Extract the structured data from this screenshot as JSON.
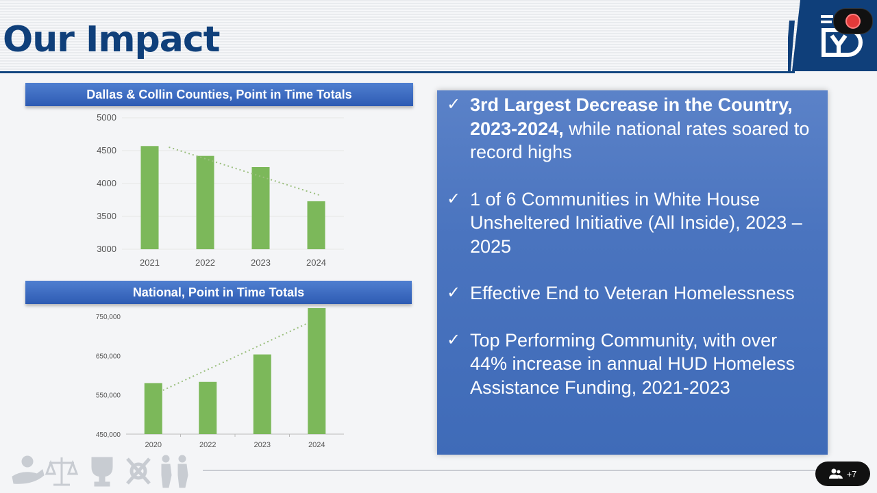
{
  "slide": {
    "title": "Our Impact"
  },
  "chart_data": [
    {
      "type": "bar",
      "title": "Dallas & Collin Counties, Point in Time Totals",
      "categories": [
        "2021",
        "2022",
        "2023",
        "2024"
      ],
      "values": [
        4570,
        4420,
        4250,
        3730
      ],
      "ylim": [
        3000,
        5000
      ],
      "yticks": [
        3000,
        3500,
        4000,
        4500,
        5000
      ],
      "ytick_labels": [
        "3000",
        "3500",
        "4000",
        "4500",
        "5000"
      ],
      "trendline": "linear-dotted",
      "grid": true,
      "color": "#7cb85a"
    },
    {
      "type": "bar",
      "title": "National, Point in Time Totals",
      "categories": [
        "2020",
        "2022",
        "2023",
        "2024"
      ],
      "values": [
        580000,
        583000,
        653000,
        771000
      ],
      "ylim": [
        450000,
        750000
      ],
      "yticks": [
        450000,
        550000,
        650000,
        750000
      ],
      "ytick_labels": [
        "450,000",
        "550,000",
        "650,000",
        "750,000"
      ],
      "trendline": "linear-dotted",
      "grid": false,
      "color": "#7cb85a"
    }
  ],
  "panel": {
    "bullets": [
      {
        "check": "✓",
        "bold": "3rd Largest Decrease in the Country, 2023-2024,",
        "text": " while national rates soared to record highs"
      },
      {
        "check": "✓",
        "bold": "",
        "text": "1 of 6 Communities in White House Unsheltered Initiative (All Inside), 2023 – 2025"
      },
      {
        "check": "✓",
        "bold": "",
        "text": "Effective End to Veteran Homelessness"
      },
      {
        "check": "✓",
        "bold": "",
        "text": "Top Performing Community, with over 44% increase in annual HUD Homeless Assistance Funding, 2021-2023"
      }
    ]
  },
  "call": {
    "participants": "+7"
  },
  "colors": {
    "brand_navy": "#0f3f7a",
    "accent_blue": "#2e5bb3",
    "bar_green": "#7cb85a"
  }
}
